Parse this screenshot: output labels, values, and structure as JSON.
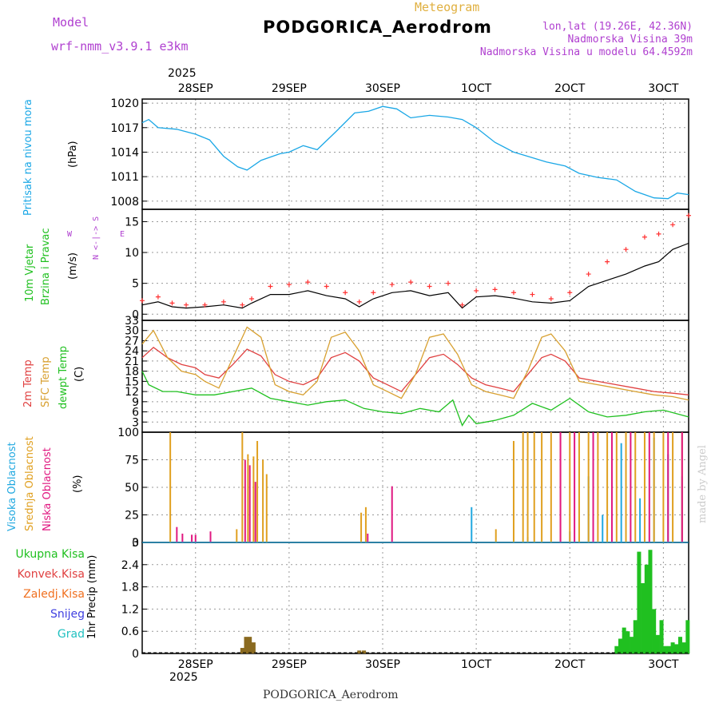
{
  "header": {
    "model_label": "Model",
    "model_name": "wrf-nmm_v3.9.1 e3km",
    "subtitle": "Meteogram",
    "station": "PODGORICA_Aerodrom",
    "lonlat": "lon,lat (19.26E, 42.36N)",
    "altitude": "Nadmorska Visina 39m",
    "model_altitude": "Nadmorska Visina u modelu 64.4592m"
  },
  "footer": {
    "station": "PODGORICA_Aerodrom",
    "credit": "made by Angel"
  },
  "colors": {
    "pressure": "#1aa7e6",
    "temp": "#e04040",
    "sfc": "#d8a030",
    "dewpt": "#20c020",
    "high_cloud": "#20a8e0",
    "mid_cloud": "#e0a020",
    "low_cloud": "#e01880",
    "precip_total": "#20c020",
    "precip_conv": "#e04040",
    "precip_frozen": "#f07020",
    "snow": "#4040e0",
    "grad": "#20c0c0",
    "wind_label": "#20c020",
    "grid": "#999999"
  },
  "time_axis": {
    "year": "2025",
    "top_labels": [
      "28SEP",
      "29SEP",
      "30SEP",
      "1OCT",
      "2OCT",
      "3OCT"
    ],
    "bottom_labels": [
      "28SEP",
      "29SEP",
      "30SEP",
      "1OCT",
      "2OCT",
      "3OCT"
    ],
    "label_times": [
      1,
      2,
      3,
      4,
      5,
      6
    ],
    "t_range": [
      0.43,
      6.27
    ]
  },
  "panels": {
    "pressure": {
      "label1": "Pritisak na nivou mora",
      "label2": "(hPa)"
    },
    "wind": {
      "label1": "10m Vjetar",
      "label2": "Brzina i Pravac",
      "label3": "(m/s)",
      "compass_ns": "N <-|-> S",
      "w": "W",
      "e": "E"
    },
    "temp": {
      "label1": "2m Temp",
      "label2": "SFC Temp",
      "label3": "dewpt Temp",
      "label4": "(C)"
    },
    "cloud": {
      "label1": "Visoka Oblacnost",
      "label2": "Srednja Oblacnost",
      "label3": "Niska Oblacnost",
      "label4": "(%)"
    },
    "precip": {
      "label": "1hr Precip (mm)",
      "legend": [
        "Ukupna Kisa",
        "Konvek.Kisa",
        "Zaledj.Kisa",
        "Snijeg",
        "Grad"
      ]
    }
  },
  "chart_data": [
    {
      "type": "line",
      "title": "Pritisak na nivou mora",
      "ylabel": "(hPa)",
      "ylim": [
        1007,
        1020.5
      ],
      "yticks": [
        1008,
        1011,
        1014,
        1017,
        1020
      ],
      "x": [
        0.43,
        0.5,
        0.6,
        0.8,
        1.0,
        1.15,
        1.3,
        1.45,
        1.55,
        1.7,
        1.9,
        2.0,
        2.15,
        2.3,
        2.5,
        2.7,
        2.85,
        3.0,
        3.15,
        3.3,
        3.5,
        3.7,
        3.85,
        4.0,
        4.2,
        4.4,
        4.55,
        4.75,
        4.95,
        5.1,
        5.3,
        5.5,
        5.7,
        5.9,
        6.05,
        6.15,
        6.27
      ],
      "series": [
        {
          "name": "SLP",
          "values": [
            1017.6,
            1018.0,
            1017.0,
            1016.8,
            1016.2,
            1015.5,
            1013.5,
            1012.2,
            1011.8,
            1013.0,
            1013.8,
            1014.0,
            1014.8,
            1014.3,
            1016.5,
            1018.8,
            1019.0,
            1019.6,
            1019.3,
            1018.2,
            1018.5,
            1018.3,
            1018.0,
            1017.0,
            1015.2,
            1014.0,
            1013.5,
            1012.8,
            1012.3,
            1011.4,
            1010.9,
            1010.6,
            1009.2,
            1008.4,
            1008.3,
            1009.0,
            1008.8
          ]
        }
      ]
    },
    {
      "type": "line",
      "title": "10m Vjetar",
      "ylabel": "(m/s)",
      "ylim": [
        -1,
        17
      ],
      "yticks": [
        0,
        5,
        10,
        15
      ],
      "x": [
        0.43,
        0.6,
        0.75,
        0.9,
        1.1,
        1.3,
        1.5,
        1.6,
        1.8,
        2.0,
        2.2,
        2.4,
        2.6,
        2.75,
        2.9,
        3.1,
        3.3,
        3.5,
        3.7,
        3.85,
        4.0,
        4.2,
        4.4,
        4.6,
        4.8,
        5.0,
        5.2,
        5.4,
        5.6,
        5.8,
        5.95,
        6.1,
        6.27
      ],
      "series": [
        {
          "name": "Wind speed",
          "values": [
            1.5,
            2.0,
            1.2,
            1.0,
            1.2,
            1.5,
            1.0,
            1.8,
            3.2,
            3.2,
            3.8,
            3.0,
            2.5,
            1.2,
            2.5,
            3.5,
            3.8,
            3.0,
            3.5,
            1.0,
            2.8,
            3.0,
            2.6,
            2.0,
            1.8,
            2.2,
            4.5,
            5.5,
            6.5,
            7.8,
            8.5,
            10.5,
            11.5
          ]
        },
        {
          "name": "Gust",
          "values": [
            2.2,
            2.8,
            1.8,
            1.5,
            1.5,
            2.0,
            1.5,
            2.5,
            4.5,
            4.8,
            5.2,
            4.5,
            3.5,
            2.0,
            3.5,
            4.8,
            5.2,
            4.5,
            5.0,
            1.5,
            3.8,
            4.0,
            3.5,
            3.2,
            2.5,
            3.5,
            6.5,
            8.5,
            10.5,
            12.5,
            13.0,
            14.5,
            16.0
          ]
        }
      ]
    },
    {
      "type": "line",
      "title": "2m Temp / SFC Temp / dewpt Temp",
      "ylabel": "(C)",
      "ylim": [
        0,
        33
      ],
      "yticks": [
        3,
        6,
        9,
        12,
        15,
        18,
        21,
        24,
        27,
        30,
        33
      ],
      "series": [
        {
          "name": "2m Temp",
          "x": [
            0.43,
            0.55,
            0.7,
            0.85,
            1.0,
            1.1,
            1.25,
            1.4,
            1.55,
            1.7,
            1.85,
            2.0,
            2.15,
            2.3,
            2.45,
            2.6,
            2.75,
            2.9,
            3.05,
            3.2,
            3.35,
            3.5,
            3.65,
            3.8,
            3.95,
            4.1,
            4.25,
            4.4,
            4.55,
            4.7,
            4.8,
            4.95,
            5.1,
            5.3,
            5.5,
            5.7,
            5.9,
            6.1,
            6.27
          ],
          "values": [
            22,
            25,
            22,
            20,
            19,
            17,
            16,
            20,
            24.5,
            22.5,
            17,
            15,
            14,
            16,
            22,
            23.5,
            21,
            16,
            14,
            12,
            17,
            22,
            23,
            20,
            16,
            14,
            13,
            12,
            17,
            22,
            23,
            21,
            16,
            15,
            14,
            13,
            12,
            11.5,
            11
          ]
        },
        {
          "name": "SFC Temp",
          "x": [
            0.43,
            0.55,
            0.7,
            0.85,
            1.0,
            1.1,
            1.25,
            1.4,
            1.55,
            1.7,
            1.85,
            2.0,
            2.15,
            2.3,
            2.45,
            2.6,
            2.75,
            2.9,
            3.05,
            3.2,
            3.35,
            3.5,
            3.65,
            3.8,
            3.95,
            4.1,
            4.25,
            4.4,
            4.55,
            4.7,
            4.8,
            4.95,
            5.1,
            5.3,
            5.5,
            5.7,
            5.9,
            6.1,
            6.27
          ],
          "values": [
            26,
            30,
            22,
            18,
            17,
            15,
            13,
            22,
            31,
            28,
            14,
            12,
            11,
            15,
            28,
            29.5,
            24,
            14,
            12,
            10,
            17,
            28,
            29,
            23,
            14,
            12,
            11,
            10,
            18,
            28,
            29,
            24,
            15,
            14,
            13,
            12,
            11,
            10.5,
            9.5
          ]
        },
        {
          "name": "dewpt Temp",
          "x": [
            0.43,
            0.5,
            0.65,
            0.8,
            1.0,
            1.2,
            1.4,
            1.6,
            1.8,
            2.0,
            2.2,
            2.4,
            2.6,
            2.8,
            3.0,
            3.2,
            3.4,
            3.6,
            3.75,
            3.85,
            3.92,
            4.0,
            4.2,
            4.4,
            4.6,
            4.8,
            5.0,
            5.2,
            5.4,
            5.6,
            5.8,
            6.0,
            6.27
          ],
          "values": [
            18,
            14,
            12,
            12,
            11,
            11,
            12,
            13,
            10,
            9,
            8,
            9,
            9.5,
            7,
            6,
            5.5,
            7,
            6,
            9.5,
            2,
            5,
            2.5,
            3.5,
            5,
            8.5,
            6.5,
            10,
            6,
            4.5,
            5,
            6,
            6.5,
            4.5
          ]
        }
      ]
    },
    {
      "type": "bar",
      "title": "Oblacnost",
      "ylabel": "(%)",
      "ylim": [
        0,
        100
      ],
      "yticks": [
        0,
        25,
        50,
        75,
        100
      ],
      "series": [
        {
          "name": "Visoka Oblacnost",
          "x": [
            3.95,
            4.55,
            5.0,
            5.2,
            5.35,
            5.55,
            5.75,
            5.9,
            6.05,
            6.2
          ],
          "values": [
            32,
            5,
            10,
            60,
            25,
            90,
            40,
            95,
            80,
            60
          ]
        },
        {
          "name": "Srednja Oblacnost",
          "x": [
            0.73,
            1.44,
            1.5,
            1.56,
            1.62,
            1.66,
            1.72,
            1.76,
            2.77,
            2.82,
            4.21,
            4.4,
            4.5,
            4.55,
            4.62,
            4.7,
            4.8,
            4.9,
            5.0,
            5.1,
            5.2,
            5.3,
            5.4,
            5.5,
            5.6,
            5.7,
            5.8,
            5.9,
            6.0,
            6.1,
            6.2
          ],
          "values": [
            100,
            12,
            100,
            80,
            78,
            92,
            75,
            62,
            27,
            32,
            12,
            92,
            100,
            100,
            100,
            100,
            100,
            100,
            100,
            100,
            100,
            100,
            100,
            100,
            100,
            100,
            100,
            100,
            100,
            100,
            100
          ]
        },
        {
          "name": "Niska Oblacnost",
          "x": [
            0.8,
            0.86,
            0.96,
            1.0,
            1.16,
            1.53,
            1.58,
            1.64,
            2.84,
            3.1,
            4.9,
            5.05,
            5.25,
            5.45,
            5.65,
            5.85,
            6.05,
            6.2
          ],
          "values": [
            14,
            8,
            7,
            7,
            10,
            75,
            70,
            55,
            8,
            51,
            100,
            100,
            100,
            100,
            100,
            100,
            100,
            100
          ]
        }
      ]
    },
    {
      "type": "bar",
      "title": "1hr Precip",
      "ylabel": "1hr Precip (mm)",
      "ylim": [
        0,
        3
      ],
      "yticks": [
        0,
        0.6,
        1.2,
        1.8,
        2.4,
        3
      ],
      "series": [
        {
          "name": "Ukupna Kisa",
          "x": [
            5.5,
            5.54,
            5.58,
            5.62,
            5.66,
            5.7,
            5.74,
            5.78,
            5.82,
            5.86,
            5.9,
            5.94,
            5.98,
            6.02,
            6.06,
            6.1,
            6.14,
            6.18,
            6.22,
            6.26
          ],
          "values": [
            0.2,
            0.4,
            0.7,
            0.6,
            0.45,
            0.9,
            2.75,
            1.9,
            2.4,
            2.8,
            1.2,
            0.5,
            0.9,
            0.2,
            0.2,
            0.3,
            0.25,
            0.45,
            0.3,
            0.9
          ]
        },
        {
          "name": "Konvek.Kisa",
          "x": [
            1.5,
            1.54,
            1.58,
            1.62,
            2.75,
            2.8
          ],
          "values": [
            0.15,
            0.45,
            0.45,
            0.3,
            0.08,
            0.08
          ]
        }
      ]
    }
  ]
}
